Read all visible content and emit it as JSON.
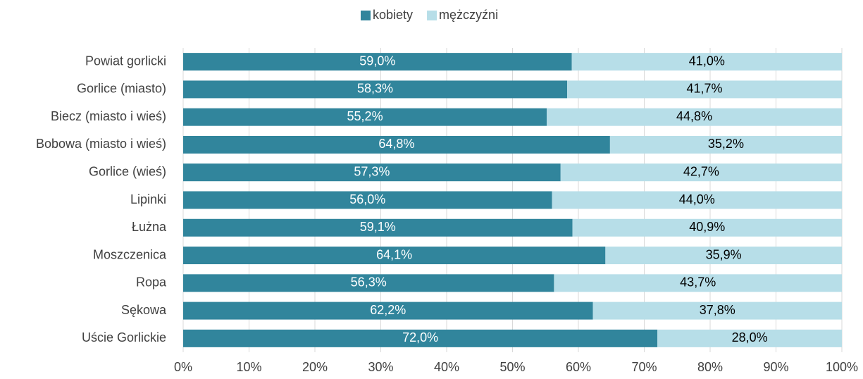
{
  "chart_data": {
    "type": "stacked-barh",
    "categories": [
      "Powiat gorlicki",
      "Gorlice (miasto)",
      "Biecz (miasto i wieś)",
      "Bobowa (miasto i wieś)",
      "Gorlice (wieś)",
      "Lipinki",
      "Łużna",
      "Moszczenica",
      "Ropa",
      "Sękowa",
      "Uście Gorlickie"
    ],
    "series": [
      {
        "name": "kobiety",
        "color": "#31859c",
        "values": [
          59.0,
          58.3,
          55.2,
          64.8,
          57.3,
          56.0,
          59.1,
          64.1,
          56.3,
          62.2,
          72.0
        ],
        "value_labels": [
          "59,0%",
          "58,3%",
          "55,2%",
          "64,8%",
          "57,3%",
          "56,0%",
          "59,1%",
          "64,1%",
          "56,3%",
          "62,2%",
          "72,0%"
        ]
      },
      {
        "name": "mężczyźni",
        "color": "#b7dee8",
        "values": [
          41.0,
          41.7,
          44.8,
          35.2,
          42.7,
          44.0,
          40.9,
          35.9,
          43.7,
          37.8,
          28.0
        ],
        "value_labels": [
          "41,0%",
          "41,7%",
          "44,8%",
          "35,2%",
          "42,7%",
          "44,0%",
          "40,9%",
          "35,9%",
          "43,7%",
          "37,8%",
          "28,0%"
        ]
      }
    ],
    "xlim": [
      0,
      100
    ],
    "xticks": [
      {
        "value": 0,
        "label": "0%"
      },
      {
        "value": 10,
        "label": "10%"
      },
      {
        "value": 20,
        "label": "20%"
      },
      {
        "value": 30,
        "label": "30%"
      },
      {
        "value": 40,
        "label": "40%"
      },
      {
        "value": 50,
        "label": "50%"
      },
      {
        "value": 60,
        "label": "60%"
      },
      {
        "value": 70,
        "label": "70%"
      },
      {
        "value": 80,
        "label": "80%"
      },
      {
        "value": 90,
        "label": "90%"
      },
      {
        "value": 100,
        "label": "100%"
      }
    ],
    "grid": true,
    "legend": "top"
  }
}
